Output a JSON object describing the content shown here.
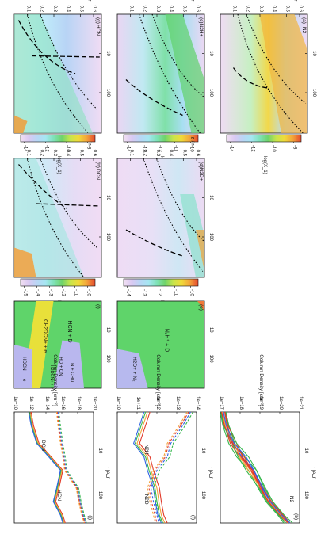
{
  "figure": {
    "title": "",
    "rotated_note": ""
  },
  "colors": {
    "bg": "#ffffff",
    "axis": "#111111",
    "colormap": [
      "#f2dff2",
      "#d9c9f2",
      "#b9d6f5",
      "#a6e6f2",
      "#7fe2b8",
      "#6fd36b",
      "#c8e54b",
      "#f0da3a",
      "#f3a43a",
      "#e4472e"
    ],
    "overlay_dotted": "#000000",
    "overlay_dashed": "#000000",
    "line_red": "#e23b2b",
    "line_orange": "#f3a43a",
    "line_green": "#35b84c",
    "line_blue": "#2f62e5"
  },
  "labels": {
    "axis_top": "z / r",
    "axis_mid": "r [AU]",
    "colorbar": "log(X_1)",
    "colum_density": "Column Density [cm⁻²]"
  },
  "panels": [
    {
      "key": "a",
      "tag": "(a)",
      "species": "N2",
      "ticks_top": [
        "0.1",
        "0.2",
        "0.3",
        "0.4",
        "0.5",
        "0.6"
      ],
      "ticks_r": [
        "10",
        "100"
      ],
      "cbar_ticks": [
        "-14",
        "-12",
        "-10",
        "-8"
      ]
    },
    {
      "key": "b",
      "tag": "(b)",
      "species": "N2",
      "ticks_y": [
        "1e+21",
        "1e+20",
        "1e+19",
        "1e+18",
        "1e+17"
      ],
      "ticks_r": [
        "10",
        "100"
      ]
    },
    {
      "key": "c",
      "tag": "(c)",
      "species": "N2H+",
      "ticks_top": [
        "0.1",
        "0.2",
        "0.3",
        "0.4",
        "0.5",
        "0.6"
      ],
      "ticks_r": [
        "10",
        "100"
      ],
      "cbar_ticks": [
        "-14",
        "-13",
        "-12",
        "-11",
        "-10"
      ]
    },
    {
      "key": "d",
      "tag": "(d)",
      "species": "N2D+",
      "ticks_top": [
        "0.1",
        "0.2",
        "0.3",
        "0.4",
        "0.5",
        "0.6"
      ],
      "ticks_r": [
        "10",
        "100"
      ],
      "cbar_ticks": [
        "-14",
        "-13",
        "-12",
        "-11",
        "-10"
      ]
    },
    {
      "key": "e",
      "tag": "(e)",
      "species": "N2H+ + D / H2D+ + N2",
      "ticks_r": [
        "10",
        "100"
      ]
    },
    {
      "key": "f",
      "tag": "(f)",
      "species": "N2H+ / N2D+",
      "ticks_y": [
        "1e+14",
        "1e+13",
        "1e+12",
        "1e+11",
        "1e+10"
      ],
      "ticks_r": [
        "10",
        "100"
      ]
    },
    {
      "key": "g",
      "tag": "(g)",
      "species": "HCN",
      "ticks_top": [
        "0.1",
        "0.2",
        "0.3",
        "0.4",
        "0.5",
        "0.6"
      ],
      "ticks_r": [
        "10",
        "100"
      ],
      "cbar_ticks": [
        "-14",
        "-12",
        "-10",
        "-8"
      ]
    },
    {
      "key": "h",
      "tag": "(h)",
      "species": "DCN",
      "ticks_top": [
        "0.1",
        "0.2",
        "0.3",
        "0.4",
        "0.5",
        "0.6"
      ],
      "ticks_r": [
        "10",
        "100"
      ],
      "cbar_ticks": [
        "-15",
        "-14",
        "-13",
        "-12",
        "-11",
        "-10"
      ]
    },
    {
      "key": "i",
      "tag": "(i)",
      "species": "",
      "ticks_r": [
        "10",
        "100"
      ],
      "regions": [
        "HCN + D",
        "CH2DCN+ + e",
        "HD + CN",
        "N + CHD",
        "H2DCN+ + H",
        "HDCN+ + e"
      ]
    },
    {
      "key": "j",
      "tag": "(j)",
      "species": "HCN / DCN",
      "ticks_y": [
        "1e+20",
        "1e+18",
        "1e+16",
        "1e+14",
        "1e+12",
        "1e+10"
      ],
      "ticks_r": [
        "10",
        "100"
      ]
    }
  ],
  "chart_data": [
    {
      "type": "heatmap",
      "title": "(a) N2",
      "xlabel": "r [AU]",
      "ylabel": "z / r",
      "xlim": [
        1,
        300
      ],
      "ylim": [
        0,
        0.65
      ],
      "x_scale": "log",
      "colorbar_label": "log(X_1)",
      "colorbar_range": [
        -14,
        -6
      ]
    },
    {
      "type": "line",
      "title": "(b) N2",
      "xlabel": "r [AU]",
      "ylabel": "Column Density [cm^-2]",
      "x_scale": "log",
      "y_scale": "log",
      "xlim": [
        1,
        300
      ],
      "ylim": [
        1e+17,
        1e+21
      ],
      "x": [
        1,
        2,
        5,
        10,
        20,
        50,
        100,
        200,
        300
      ],
      "series": [
        {
          "name": "",
          "values": [
            8e+20,
            6e+20,
            3e+20,
            1.2e+20,
            3e+19,
            1e+19,
            4e+18,
            1e+18,
            5e+17
          ]
        },
        {
          "name": "",
          "values": [
            7e+20,
            5e+20,
            2.5e+20,
            8e+19,
            2e+19,
            8e+18,
            3e+18,
            9e+17,
            4e+17
          ]
        },
        {
          "name": "",
          "values": [
            7.5e+20,
            5.5e+20,
            2e+20,
            1e+20,
            4e+19,
            9e+18,
            3.5e+18,
            9e+17,
            4e+17
          ]
        },
        {
          "name": "",
          "values": [
            7e+20,
            5e+20,
            2e+20,
            5e+19,
            2e+19,
            7e+18,
            3e+18,
            8e+17,
            3e+17
          ]
        }
      ]
    },
    {
      "type": "heatmap",
      "title": "(c) N2H+",
      "xlabel": "r [AU]",
      "ylabel": "z / r",
      "xlim": [
        1,
        300
      ],
      "ylim": [
        0,
        0.65
      ],
      "x_scale": "log",
      "colorbar_label": "log(X_1)",
      "colorbar_range": [
        -14,
        -10
      ]
    },
    {
      "type": "heatmap",
      "title": "(d) N2D+",
      "xlabel": "r [AU]",
      "ylabel": "z / r",
      "xlim": [
        1,
        300
      ],
      "ylim": [
        0,
        0.65
      ],
      "x_scale": "log",
      "colorbar_label": "log(X_1)",
      "colorbar_range": [
        -14,
        -10
      ]
    },
    {
      "type": "heatmap",
      "title": "(e)",
      "xlabel": "r [AU]",
      "ylabel": "z / r",
      "xlim": [
        1,
        300
      ],
      "ylim": [
        0,
        0.65
      ],
      "x_scale": "log"
    },
    {
      "type": "line",
      "title": "(f)",
      "xlabel": "r [AU]",
      "ylabel": "Column Density [cm^-2]",
      "x_scale": "log",
      "y_scale": "log",
      "xlim": [
        1,
        300
      ],
      "ylim": [
        10000000000.0,
        100000000000000.0
      ],
      "x": [
        1,
        2,
        5,
        10,
        20,
        50,
        100,
        200,
        300
      ],
      "series": [
        {
          "name": "N2H+",
          "values": [
            3000000000000.0,
            5000000000000.0,
            10000000000000.0,
            3000000000000.0,
            2000000000000.0,
            1000000000000.0,
            800000000000.0,
            600000000000.0,
            400000000000.0
          ]
        },
        {
          "name": "N2D+",
          "values": [
            20000000000.0,
            50000000000.0,
            200000000000.0,
            300000000000.0,
            1000000000000.0,
            2000000000000.0,
            1500000000000.0,
            1000000000000.0,
            800000000000.0
          ]
        }
      ]
    },
    {
      "type": "heatmap",
      "title": "(g) HCN",
      "xlabel": "r [AU]",
      "ylabel": "z / r",
      "xlim": [
        1,
        300
      ],
      "ylim": [
        0,
        0.65
      ],
      "x_scale": "log",
      "colorbar_label": "log(X_1)",
      "colorbar_range": [
        -14,
        -7
      ]
    },
    {
      "type": "heatmap",
      "title": "(h) DCN",
      "xlabel": "r [AU]",
      "ylabel": "z / r",
      "xlim": [
        1,
        300
      ],
      "ylim": [
        0,
        0.65
      ],
      "x_scale": "log",
      "colorbar_label": "log(X_1)",
      "colorbar_range": [
        -15,
        -10
      ]
    },
    {
      "type": "heatmap",
      "title": "(i)",
      "xlabel": "r [AU]",
      "ylabel": "z / r",
      "xlim": [
        1,
        300
      ],
      "ylim": [
        0,
        0.65
      ],
      "x_scale": "log"
    },
    {
      "type": "line",
      "title": "(j)",
      "xlabel": "r [AU]",
      "ylabel": "Column Density [cm^-2]",
      "x_scale": "log",
      "y_scale": "log",
      "xlim": [
        1,
        300
      ],
      "ylim": [
        10000000000.0,
        1e+20
      ],
      "x": [
        1,
        2,
        5,
        10,
        20,
        50,
        100,
        200,
        300
      ],
      "series": [
        {
          "name": "HCN",
          "values": [
            1e+18,
            5e+17,
            1e+17,
            3000000000000000.0,
            100000000000000.0,
            300000000000000.0,
            800000000000000.0,
            100000000000000.0,
            50000000000000.0
          ]
        },
        {
          "name": "DCN",
          "values": [
            300000000000000.0,
            200000000000000.0,
            100000000000000.0,
            50000000000000.0,
            30000000000000.0,
            1000000000000.0,
            500000000000.0,
            200000000000.0,
            100000000000.0
          ]
        }
      ]
    }
  ]
}
